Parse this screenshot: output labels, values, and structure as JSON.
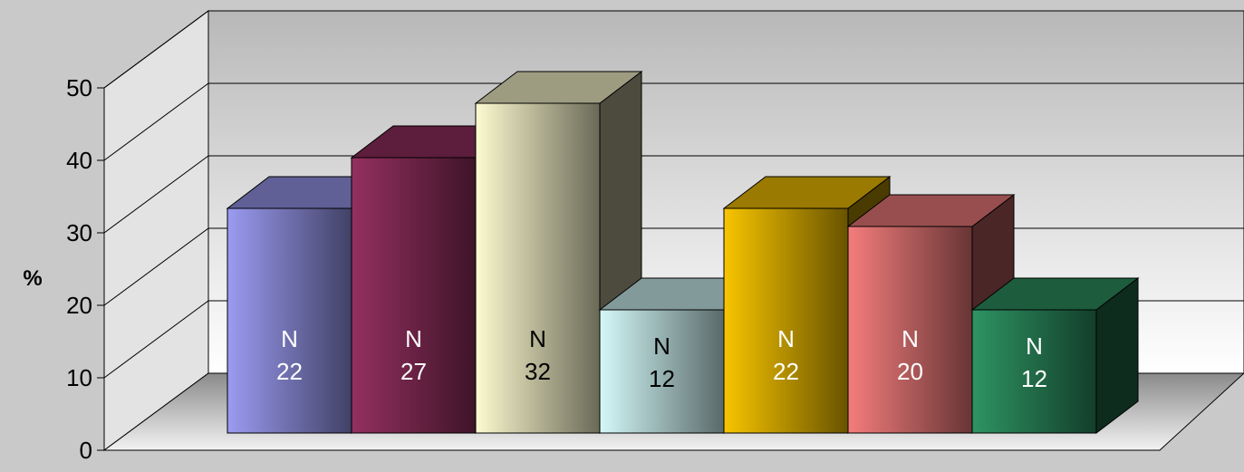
{
  "chart_data": {
    "type": "bar",
    "title": "",
    "xlabel": "",
    "ylabel": "%",
    "ylim": [
      0,
      50
    ],
    "yticks": [
      0,
      10,
      20,
      30,
      40,
      50
    ],
    "grid": true,
    "three_d": true,
    "bars": [
      {
        "value": 31,
        "label_top": "N",
        "label_bottom": "22",
        "color": "#9b9bf2",
        "label_color": "#ffffff"
      },
      {
        "value": 38,
        "label_top": "N",
        "label_bottom": "27",
        "color": "#943060",
        "label_color": "#ffffff"
      },
      {
        "value": 45.5,
        "label_top": "N",
        "label_bottom": "32",
        "color": "#fdfbd0",
        "label_color": "#000000"
      },
      {
        "value": 17,
        "label_top": "N",
        "label_bottom": "12",
        "color": "#d4f9f9",
        "label_color": "#000000"
      },
      {
        "value": 31,
        "label_top": "N",
        "label_bottom": "22",
        "color": "#f8c500",
        "label_color": "#ffffff"
      },
      {
        "value": 28.5,
        "label_top": "N",
        "label_bottom": "20",
        "color": "#f57d7d",
        "label_color": "#ffffff"
      },
      {
        "value": 17,
        "label_top": "N",
        "label_bottom": "12",
        "color": "#2e9463",
        "label_color": "#ffffff"
      }
    ]
  }
}
